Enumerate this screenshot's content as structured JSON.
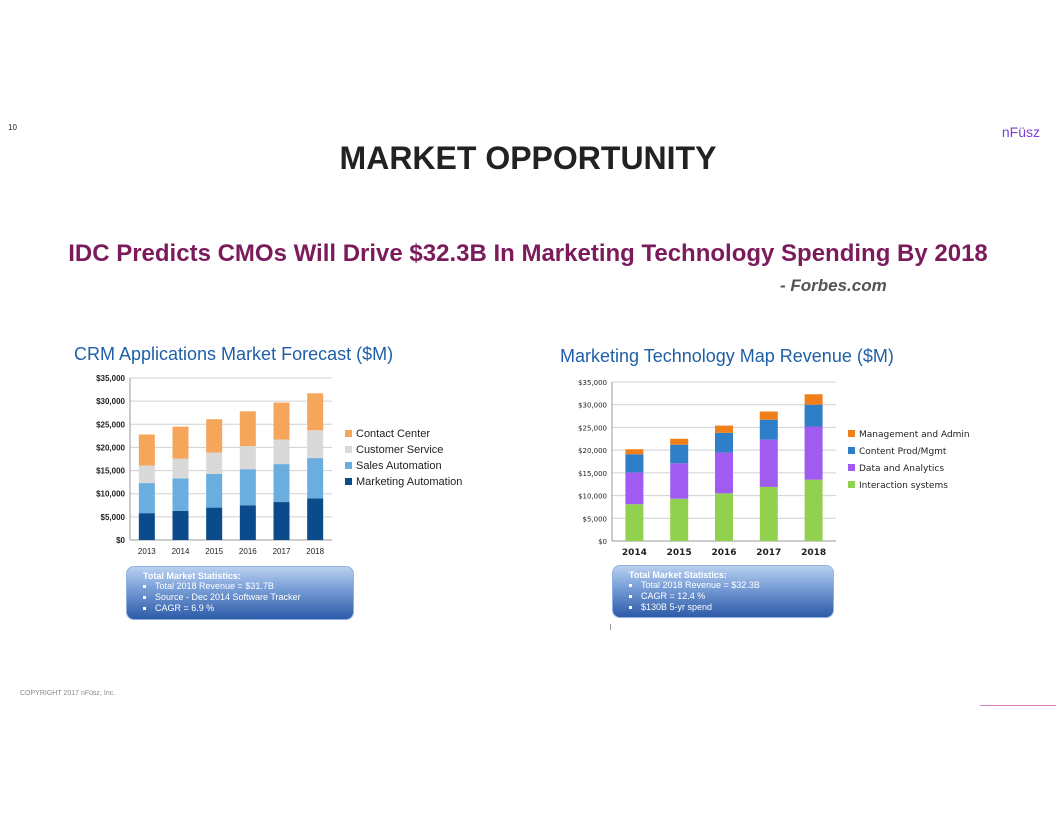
{
  "slide_number": "10",
  "brand": "nFüsz",
  "title": "MARKET OPPORTUNITY",
  "headline": "IDC Predicts CMOs Will Drive $32.3B In Marketing Technology Spending By 2018",
  "source": "- Forbes.com",
  "copyright": "COPYRIGHT 2017 nFüsz, Inc.",
  "colors": {
    "title": "#222222",
    "headline": "#7b1b5b",
    "chart_title": "#1f5fa8",
    "brand": "#7a3fd6"
  },
  "chart_data": [
    {
      "type": "bar",
      "stacked": true,
      "title": "CRM Applications Market Forecast ($M)",
      "categories": [
        "2013",
        "2014",
        "2015",
        "2016",
        "2017",
        "2018"
      ],
      "series": [
        {
          "name": "Marketing Automation",
          "color": "#0b4a8b",
          "values": [
            5800,
            6300,
            7000,
            7500,
            8200,
            9000
          ]
        },
        {
          "name": "Sales Automation",
          "color": "#6aaee0",
          "values": [
            6500,
            7000,
            7300,
            7800,
            8200,
            8700
          ]
        },
        {
          "name": "Customer Service",
          "color": "#d9d9d9",
          "values": [
            3800,
            4300,
            4600,
            5000,
            5300,
            6000
          ]
        },
        {
          "name": "Contact Center",
          "color": "#f5a65b",
          "values": [
            6700,
            6900,
            7200,
            7500,
            8000,
            8000
          ]
        }
      ],
      "y_ticks": [
        "$0",
        "$5,000",
        "$10,000",
        "$15,000",
        "$20,000",
        "$25,000",
        "$30,000",
        "$35,000"
      ],
      "ylim": [
        0,
        35000
      ],
      "legend_position": "right",
      "stats": {
        "heading": "Total Market Statistics:",
        "items": [
          "Total 2018 Revenue = $31.7B",
          "Source - Dec 2014 Software Tracker",
          "CAGR = 6.9 %"
        ]
      }
    },
    {
      "type": "bar",
      "stacked": true,
      "title": "Marketing Technology Map Revenue ($M)",
      "categories": [
        "2014",
        "2015",
        "2016",
        "2017",
        "2018"
      ],
      "series": [
        {
          "name": "Interaction systems",
          "color": "#92d050",
          "values": [
            8100,
            9300,
            10500,
            11900,
            13500
          ]
        },
        {
          "name": "Data and Analytics",
          "color": "#a05cf0",
          "values": [
            7000,
            7800,
            9000,
            10400,
            11700
          ]
        },
        {
          "name": "Content Prod/Mgmt",
          "color": "#2e7ec8",
          "values": [
            4000,
            4100,
            4300,
            4400,
            4800
          ]
        },
        {
          "name": "Management and Admin",
          "color": "#f07f1a",
          "values": [
            1100,
            1300,
            1600,
            1800,
            2300
          ]
        }
      ],
      "y_ticks": [
        "$0",
        "$5,000",
        "$10,000",
        "$15,000",
        "$20,000",
        "$25,000",
        "$30,000",
        "$35,000"
      ],
      "ylim": [
        0,
        35000
      ],
      "legend_position": "right",
      "stats": {
        "heading": "Total Market Statistics:",
        "items": [
          "Total 2018 Revenue = $32.3B",
          "CAGR = 12.4 %",
          "$130B 5-yr spend"
        ]
      }
    }
  ]
}
